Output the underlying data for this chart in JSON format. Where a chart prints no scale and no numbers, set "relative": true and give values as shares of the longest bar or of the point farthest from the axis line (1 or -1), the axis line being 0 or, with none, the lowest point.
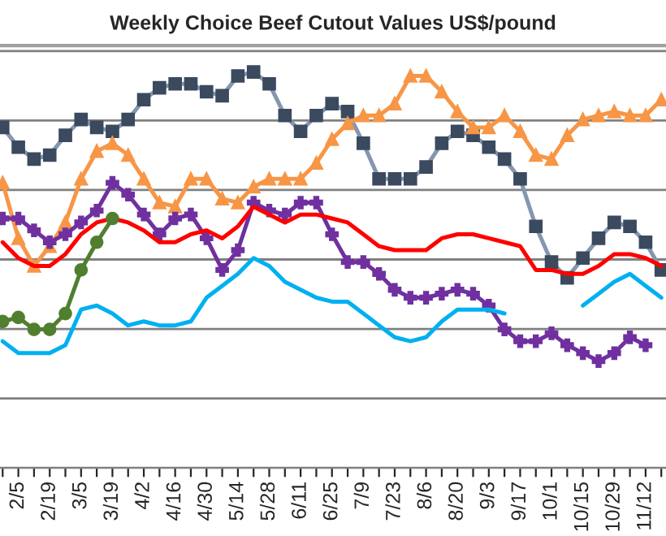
{
  "chart_data": {
    "type": "line",
    "title": "Weekly Choice Beef Cutout Values US$/pound",
    "relative": true,
    "grid": "y",
    "categories": [
      null,
      "2/5",
      null,
      "2/19",
      null,
      "3/5",
      null,
      "3/19",
      null,
      "4/2",
      null,
      "4/16",
      null,
      "4/30",
      null,
      "5/14",
      null,
      "5/28",
      null,
      "6/11",
      null,
      "6/25",
      null,
      "7/9",
      null,
      "7/23",
      null,
      "8/6",
      null,
      "8/20",
      null,
      "9/3",
      null,
      "9/17",
      null,
      "10/1",
      null,
      "10/15",
      null,
      "10/29",
      null,
      "11/12",
      null
    ],
    "series": [
      {
        "color": "#8496b0",
        "marker": "square",
        "values": [
          0.86,
          0.81,
          0.78,
          0.79,
          0.84,
          0.88,
          0.86,
          0.85,
          0.88,
          0.93,
          0.96,
          0.97,
          0.97,
          0.95,
          0.94,
          0.99,
          1,
          0.97,
          0.89,
          0.85,
          0.89,
          0.92,
          0.9,
          0.82,
          0.73,
          0.73,
          0.73,
          0.76,
          0.82,
          0.85,
          0.84,
          0.81,
          0.78,
          0.73,
          0.61,
          0.52,
          0.48,
          0.53,
          0.58,
          0.62,
          0.61,
          0.57,
          0.5
        ]
      },
      {
        "color": "#f79646",
        "marker": "triangle",
        "values": [
          0.72,
          0.58,
          0.51,
          0.56,
          0.62,
          0.73,
          0.8,
          0.82,
          0.79,
          0.73,
          0.67,
          0.66,
          0.73,
          0.73,
          0.68,
          0.67,
          0.71,
          0.73,
          0.73,
          0.73,
          0.77,
          0.83,
          0.87,
          0.89,
          0.89,
          0.92,
          0.99,
          0.99,
          0.95,
          0.9,
          0.86,
          0.86,
          0.89,
          0.85,
          0.79,
          0.78,
          0.84,
          0.88,
          0.89,
          0.9,
          0.89,
          0.89,
          0.93
        ]
      },
      {
        "color": "#7030a0",
        "marker": "cross",
        "values": [
          0.63,
          0.63,
          0.6,
          0.57,
          0.59,
          0.62,
          0.65,
          0.72,
          0.69,
          0.64,
          0.59,
          0.63,
          0.64,
          0.58,
          0.5,
          0.55,
          0.67,
          0.65,
          0.64,
          0.67,
          0.67,
          0.59,
          0.52,
          0.52,
          0.49,
          0.45,
          0.43,
          0.43,
          0.44,
          0.45,
          0.44,
          0.41,
          0.35,
          0.32,
          0.32,
          0.34,
          0.31,
          0.29,
          0.27,
          0.29,
          0.33,
          0.31,
          null
        ]
      },
      {
        "color": "#ff0000",
        "marker": "none",
        "values": [
          0.57,
          0.53,
          0.51,
          0.51,
          0.54,
          0.59,
          0.62,
          0.63,
          0.62,
          0.6,
          0.57,
          0.57,
          0.59,
          0.6,
          0.58,
          0.61,
          0.66,
          0.64,
          0.62,
          0.64,
          0.64,
          0.63,
          0.62,
          0.59,
          0.56,
          0.55,
          0.55,
          0.55,
          0.58,
          0.59,
          0.59,
          0.58,
          0.57,
          0.56,
          0.5,
          0.5,
          0.49,
          0.49,
          0.51,
          0.54,
          0.54,
          0.53,
          0.51
        ]
      },
      {
        "color": "#00b0f0",
        "marker": "none",
        "values": [
          0.32,
          0.29,
          0.29,
          0.29,
          0.31,
          0.4,
          0.41,
          0.39,
          0.36,
          0.37,
          0.36,
          0.36,
          0.37,
          0.43,
          0.46,
          0.49,
          0.53,
          0.51,
          0.47,
          0.45,
          0.43,
          0.42,
          0.42,
          0.39,
          0.36,
          0.33,
          0.32,
          0.33,
          0.37,
          0.4,
          0.4,
          0.4,
          0.39,
          null,
          null,
          null,
          null,
          0.41,
          0.44,
          0.47,
          0.49,
          0.46,
          0.43
        ]
      },
      {
        "color": "#4f7f2f",
        "marker": "circle",
        "values": [
          0.37,
          0.38,
          0.35,
          0.35,
          0.39,
          0.5,
          0.57,
          0.63,
          null,
          null,
          null,
          null,
          null,
          null,
          null,
          null,
          null,
          null,
          null,
          null,
          null,
          null,
          null,
          null,
          null,
          null,
          null,
          null,
          null,
          null,
          null,
          null,
          null,
          null,
          null,
          null,
          null,
          null,
          null,
          null,
          null,
          null,
          null
        ]
      }
    ]
  }
}
